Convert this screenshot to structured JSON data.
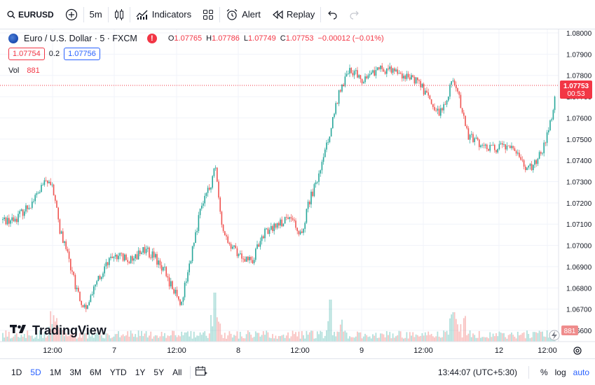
{
  "toolbar": {
    "symbol": "EURUSD",
    "interval": "5m",
    "indicators_label": "Indicators",
    "alert_label": "Alert",
    "replay_label": "Replay"
  },
  "legend": {
    "title": "Euro / U.S. Dollar · 5 · FXCM",
    "alert_mark": "!",
    "open": "1.07765",
    "high": "1.07786",
    "low": "1.07749",
    "close": "1.07753",
    "change": "−0.00012 (−0.01%)",
    "sell_price": "1.07754",
    "spread": "0.2",
    "buy_price": "1.07756",
    "vol_label": "Vol",
    "vol_value": "881"
  },
  "watermark": "TradingView",
  "price_axis": {
    "ticks": [
      "1.08000",
      "1.07900",
      "1.07800",
      "1.07700",
      "1.07600",
      "1.07500",
      "1.07400",
      "1.07300",
      "1.07200",
      "1.07100",
      "1.07000",
      "1.06900",
      "1.06800",
      "1.06700",
      "1.06600"
    ],
    "current_price": "1.07753",
    "countdown": "00:53",
    "volume_badge": "881"
  },
  "time_axis": {
    "ticks": [
      "12:00",
      "7",
      "12:00",
      "8",
      "12:00",
      "9",
      "12:00",
      "12",
      "12:00"
    ]
  },
  "bottom_bar": {
    "ranges": [
      "1D",
      "5D",
      "1M",
      "3M",
      "6M",
      "YTD",
      "1Y",
      "5Y",
      "All"
    ],
    "active_range": "5D",
    "clock": "13:44:07 (UTC+5:30)",
    "percent_label": "%",
    "log_label": "log",
    "auto_label": "auto"
  },
  "colors": {
    "up": "#26a69a",
    "down": "#ef5350",
    "accent": "#2962ff",
    "price_line": "#f23645"
  },
  "chart_data": {
    "type": "candlestick",
    "symbol": "EURUSD",
    "interval": "5",
    "ylim": [
      1.0655,
      1.0805
    ],
    "yticks": [
      1.08,
      1.079,
      1.078,
      1.077,
      1.076,
      1.075,
      1.074,
      1.073,
      1.072,
      1.071,
      1.07,
      1.069,
      1.068,
      1.067,
      1.066
    ],
    "last_price": 1.07753,
    "price_path": [
      [
        0,
        1.0712
      ],
      [
        20,
        1.0712
      ],
      [
        45,
        1.072
      ],
      [
        65,
        1.073
      ],
      [
        75,
        1.0728
      ],
      [
        85,
        1.0708
      ],
      [
        95,
        1.0698
      ],
      [
        110,
        1.0678
      ],
      [
        122,
        1.067
      ],
      [
        135,
        1.068
      ],
      [
        150,
        1.069
      ],
      [
        165,
        1.0695
      ],
      [
        185,
        1.0693
      ],
      [
        205,
        1.0698
      ],
      [
        220,
        1.0695
      ],
      [
        235,
        1.0688
      ],
      [
        245,
        1.068
      ],
      [
        258,
        1.0673
      ],
      [
        270,
        1.069
      ],
      [
        285,
        1.0715
      ],
      [
        300,
        1.0728
      ],
      [
        307,
        1.0737
      ],
      [
        315,
        1.0712
      ],
      [
        325,
        1.07
      ],
      [
        345,
        1.0695
      ],
      [
        360,
        1.0693
      ],
      [
        375,
        1.0705
      ],
      [
        395,
        1.071
      ],
      [
        415,
        1.0712
      ],
      [
        430,
        1.0705
      ],
      [
        440,
        1.072
      ],
      [
        455,
        1.0732
      ],
      [
        470,
        1.0752
      ],
      [
        485,
        1.0773
      ],
      [
        500,
        1.0783
      ],
      [
        515,
        1.0778
      ],
      [
        535,
        1.0782
      ],
      [
        555,
        1.0783
      ],
      [
        575,
        1.078
      ],
      [
        595,
        1.0778
      ],
      [
        610,
        1.077
      ],
      [
        625,
        1.0762
      ],
      [
        635,
        1.0765
      ],
      [
        645,
        1.078
      ],
      [
        655,
        1.077
      ],
      [
        668,
        1.0752
      ],
      [
        685,
        1.0748
      ],
      [
        705,
        1.0745
      ],
      [
        725,
        1.0747
      ],
      [
        740,
        1.0743
      ],
      [
        752,
        1.0735
      ],
      [
        765,
        1.074
      ],
      [
        778,
        1.0748
      ],
      [
        790,
        1.0765
      ],
      [
        794,
        1.07753
      ]
    ],
    "volume_last": 881
  }
}
